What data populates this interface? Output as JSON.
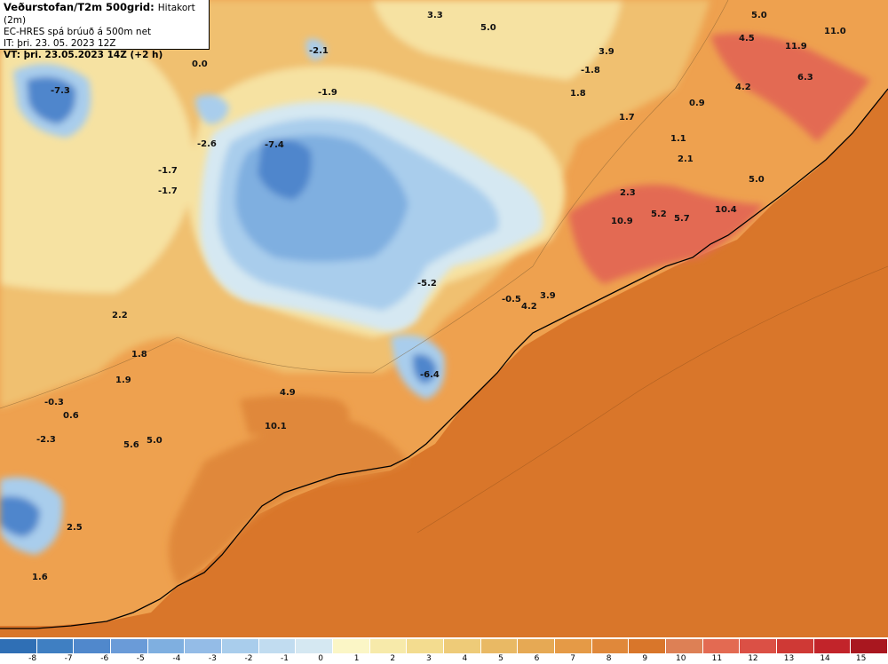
{
  "header": {
    "title_main": "Veðurstofan/T2m 500grid:",
    "title_sub": "Hitakort (2m)",
    "line2": "EC-HRES spá brúuð á 500m net",
    "line3": "IT: þri. 23. 05. 2023 12Z",
    "line4": "VT: þri. 23.05.2023 14Z (+2 h)"
  },
  "map": {
    "colors": {
      "sea": "#d9762a",
      "coast_warm": "#e9905a",
      "lowland_warm": "#eea14f",
      "mid": "#f0c070",
      "cool": "#f6e2a2",
      "cold_pale": "#d5e8f2",
      "cold_light": "#a9cdec",
      "cold_mid": "#7fafe0",
      "cold_dark": "#4f86cc",
      "hot": "#e36a52",
      "coast_line": "#000000"
    },
    "labels": [
      "3.3",
      "5.0",
      "5.0",
      "4.5",
      "11.9",
      "11.0",
      "-2.1",
      "0.0",
      "-1.8",
      "3.9",
      "-7.3",
      "1.8",
      "6.3",
      "4.2",
      "-1.9",
      "0.9",
      "1.7",
      "-2.6",
      "-7.4",
      "1.1",
      "2.1",
      "-1.7",
      "-1.7",
      "5.0",
      "2.3",
      "10.4",
      "10.9",
      "5.2",
      "5.7",
      "-5.2",
      "-0.5",
      "4.2",
      "3.9",
      "2.2",
      "1.8",
      "1.9",
      "4.9",
      "-6.4",
      "-0.3",
      "0.6",
      "10.1",
      "-2.3",
      "5.6",
      "5.0",
      "2.5",
      "1.6"
    ]
  },
  "colorbar": {
    "colors": [
      "#2f6fb5",
      "#3f7fc2",
      "#5088cc",
      "#6a9bd8",
      "#7fafe0",
      "#94bce7",
      "#a9cdec",
      "#c1dcf0",
      "#d5e8f2",
      "#fbf6c6",
      "#f7eaaa",
      "#f3dc8f",
      "#eecb78",
      "#e9b964",
      "#e6a954",
      "#e59a46",
      "#e0883a",
      "#d9762a",
      "#dd8055",
      "#e36a52",
      "#db5045",
      "#cf3935",
      "#c2242a",
      "#a9171f"
    ],
    "ticks": [
      "-8",
      "-7",
      "-6",
      "-5",
      "-4",
      "-3",
      "-2",
      "-1",
      "0",
      "1",
      "2",
      "3",
      "4",
      "5",
      "6",
      "7",
      "8",
      "9",
      "10",
      "11",
      "12",
      "13",
      "14",
      "15"
    ]
  }
}
